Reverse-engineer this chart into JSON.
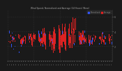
{
  "title": "Wind Speed, Normalized and Average (24 Hours) (New)",
  "bg_color": "#1a1a1a",
  "plot_bg": "#1a1a1a",
  "grid_color": "#3a3a3a",
  "ylim": [
    0,
    7
  ],
  "yticks": [
    2,
    4,
    6
  ],
  "bar_count": 140,
  "seed": 42,
  "red_color": "#dd2222",
  "blue_color": "#3355ff",
  "legend_blue_label": "Normalized",
  "legend_red_label": "Average",
  "title_color": "#aaaaaa",
  "tick_color": "#888888"
}
